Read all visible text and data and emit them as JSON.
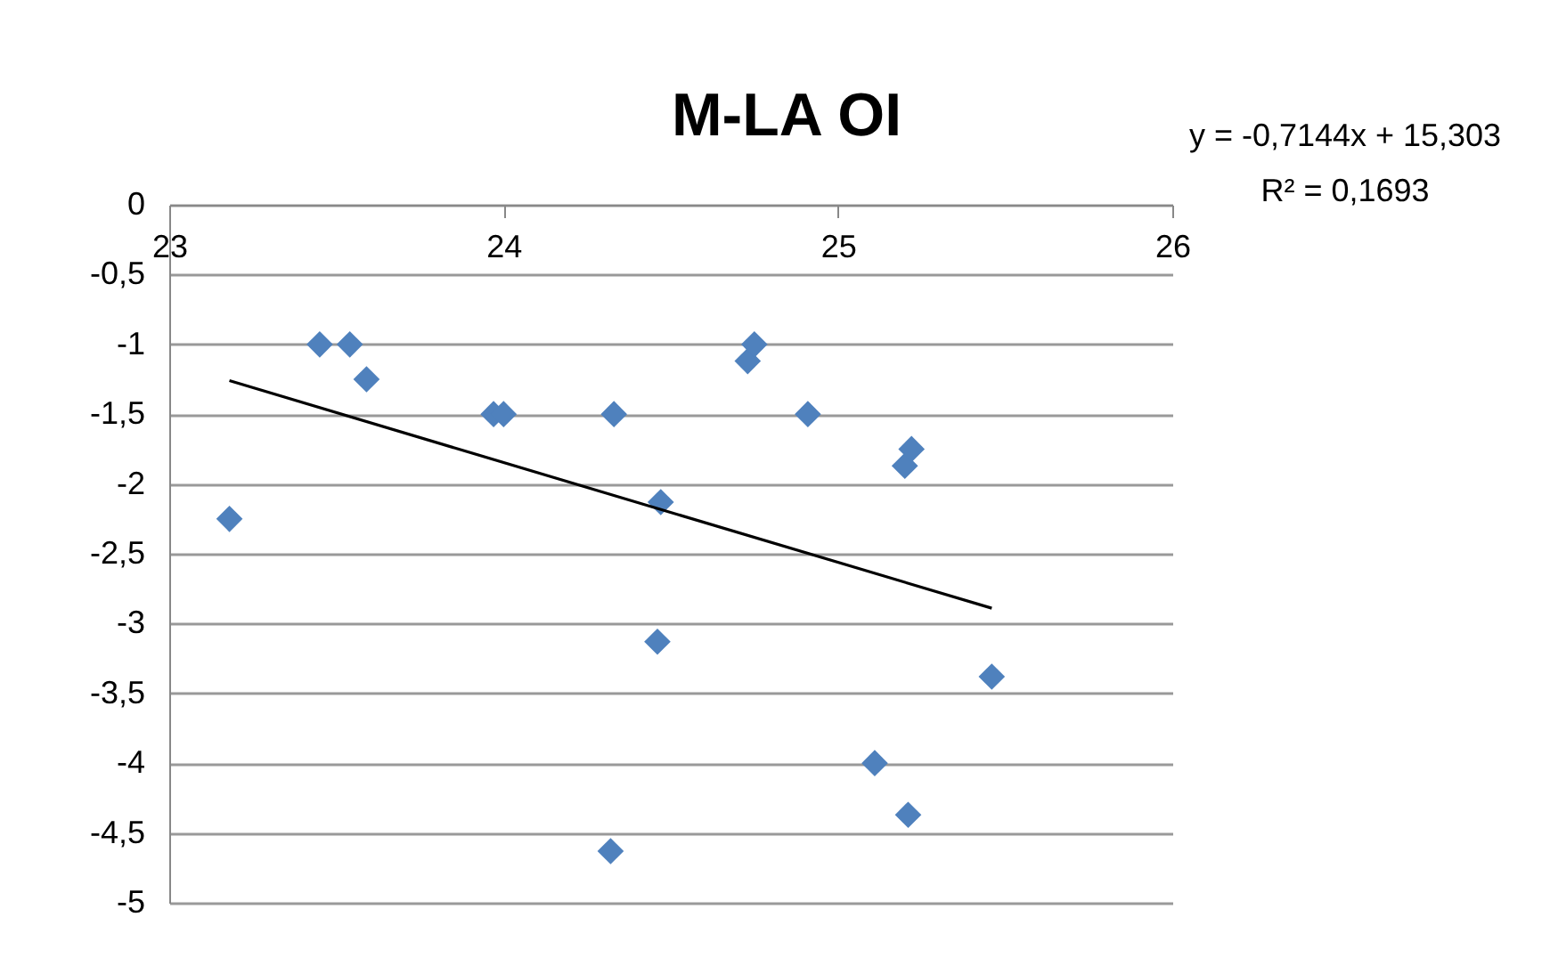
{
  "chart_data": {
    "type": "scatter",
    "title": "M-LA OI",
    "x": [
      23.18,
      23.45,
      23.54,
      23.59,
      23.97,
      24.0,
      24.33,
      24.32,
      24.47,
      24.46,
      24.73,
      24.75,
      24.91,
      25.2,
      25.22,
      25.11,
      25.21,
      25.46
    ],
    "series": [
      {
        "color": "#4f81bd",
        "marker": "diamond",
        "values": [
          -2.25,
          -1,
          -1,
          -1.25,
          -1.5,
          -1.5,
          -1.5,
          -4.63,
          -2.13,
          -3.13,
          -1.12,
          -1,
          -1.5,
          -1.87,
          -1.75,
          -4.0,
          -4.37,
          -3.38
        ]
      },
      {
        "type": "line",
        "color": "#000000",
        "x": [
          23.18,
          25.46
        ],
        "values": [
          -1.26,
          -2.89
        ]
      }
    ],
    "xlim": [
      23,
      26
    ],
    "xticks": [
      23,
      24,
      25,
      26
    ],
    "ylim": [
      -5,
      0
    ],
    "yticks": [
      0,
      {
        "value": -0.5,
        "label": "-0,5"
      },
      -1,
      {
        "value": -1.5,
        "label": "-1,5"
      },
      -2,
      {
        "value": -2.5,
        "label": "-2,5"
      },
      -3,
      {
        "value": -3.5,
        "label": "-3,5"
      },
      -4,
      {
        "value": -4.5,
        "label": "-4,5"
      },
      -5
    ],
    "grid": "y",
    "annotations": [
      "y = -0,7144x + 15,303",
      "R² = 0,1693"
    ]
  }
}
